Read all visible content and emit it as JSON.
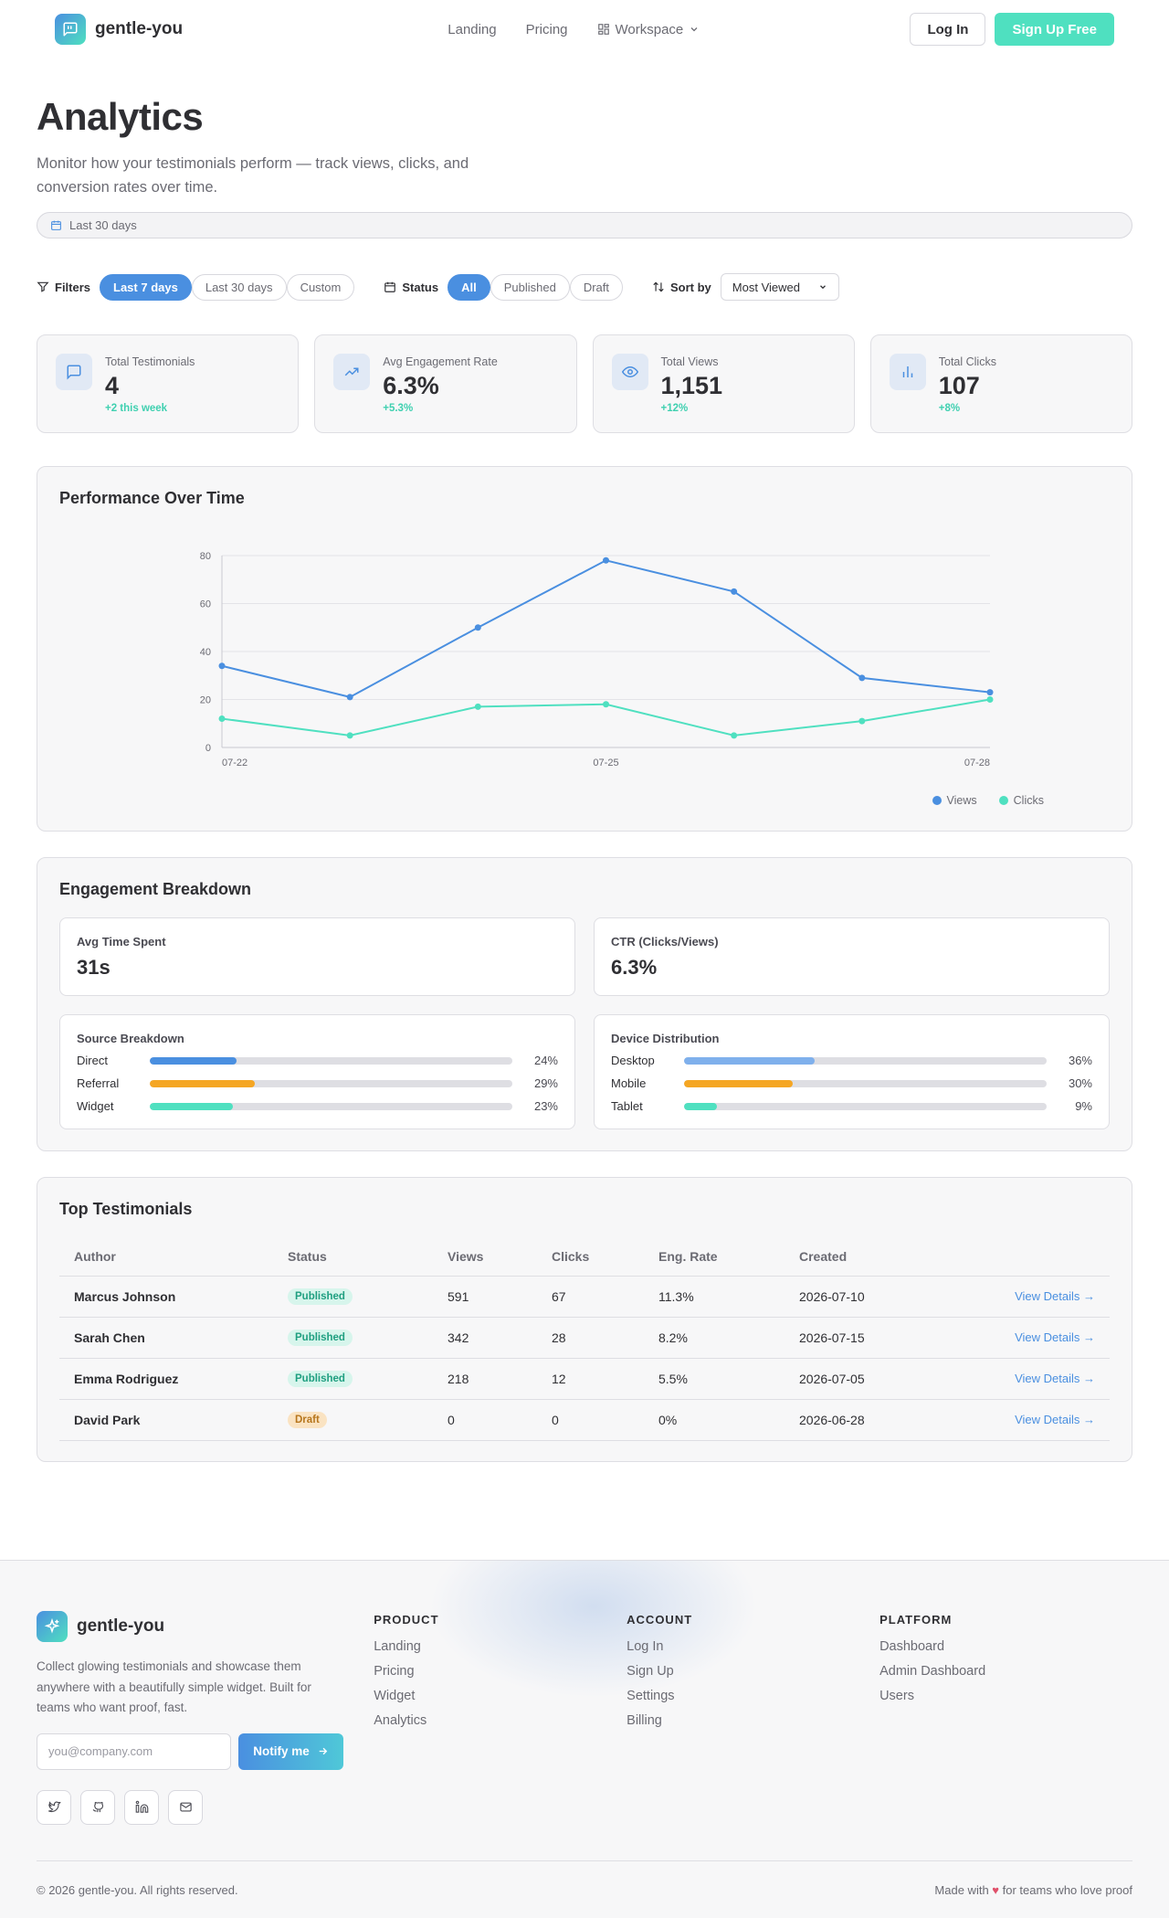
{
  "nav": {
    "brand": "gentle-you",
    "links": [
      "Landing",
      "Pricing",
      "Workspace"
    ],
    "login": "Log In",
    "signup": "Sign Up Free"
  },
  "hero": {
    "title": "Analytics",
    "subtitle": "Monitor how your testimonials perform — track views, clicks, and conversion rates over time.",
    "range": "Last 30 days"
  },
  "filters": {
    "filters_label": "Filters",
    "time_options": [
      "Last 7 days",
      "Last 30 days",
      "Custom"
    ],
    "time_selected": "Last 7 days",
    "status_label": "Status",
    "status_options": [
      "All",
      "Published",
      "Draft"
    ],
    "status_selected": "All",
    "sort_label": "Sort by",
    "sort_value": "Most Viewed"
  },
  "stats": [
    {
      "label": "Total Testimonials",
      "value": "4",
      "delta": "+2 this week",
      "icon": "message-icon"
    },
    {
      "label": "Avg Engagement Rate",
      "value": "6.3%",
      "delta": "+5.3%",
      "icon": "trend-up-icon"
    },
    {
      "label": "Total Views",
      "value": "1,151",
      "delta": "+12%",
      "icon": "eye-icon"
    },
    {
      "label": "Total Clicks",
      "value": "107",
      "delta": "+8%",
      "icon": "bar-chart-icon"
    }
  ],
  "performance": {
    "title": "Performance Over Time"
  },
  "chart_data": {
    "type": "line",
    "title": "Performance Over Time",
    "x": [
      "07-22",
      "07-23",
      "07-24",
      "07-25",
      "07-26",
      "07-27",
      "07-28"
    ],
    "x_tick_labels": [
      "07-22",
      "07-25",
      "07-28"
    ],
    "y_ticks": [
      0,
      20,
      40,
      60,
      80
    ],
    "ylim": [
      0,
      80
    ],
    "grid": true,
    "legend": "bottom-right",
    "series": [
      {
        "name": "Views",
        "color": "#4a8fe0",
        "values": [
          34,
          21,
          50,
          78,
          65,
          29,
          23
        ]
      },
      {
        "name": "Clicks",
        "color": "#4fe0c0",
        "values": [
          12,
          5,
          17,
          18,
          5,
          11,
          20
        ]
      }
    ]
  },
  "engagement": {
    "title": "Engagement Breakdown",
    "avg_time_label": "Avg Time Spent",
    "avg_time_value": "31s",
    "ctr_label": "CTR (Clicks/Views)",
    "ctr_value": "6.3%",
    "source_title": "Source Breakdown",
    "sources": [
      {
        "label": "Direct",
        "pct": "24%",
        "value": 24,
        "color": "#4a8fe0"
      },
      {
        "label": "Referral",
        "pct": "29%",
        "value": 29,
        "color": "#f5a623"
      },
      {
        "label": "Widget",
        "pct": "23%",
        "value": 23,
        "color": "#4fe0c0"
      }
    ],
    "device_title": "Device Distribution",
    "devices": [
      {
        "label": "Desktop",
        "pct": "36%",
        "value": 36,
        "color": "#7fb0ec"
      },
      {
        "label": "Mobile",
        "pct": "30%",
        "value": 30,
        "color": "#f5a623"
      },
      {
        "label": "Tablet",
        "pct": "9%",
        "value": 9,
        "color": "#4fe0c0"
      }
    ]
  },
  "top": {
    "title": "Top Testimonials",
    "headers": [
      "Author",
      "Status",
      "Views",
      "Clicks",
      "Eng. Rate",
      "Created",
      ""
    ],
    "rows": [
      {
        "author": "Marcus Johnson",
        "status": "Published",
        "views": "591",
        "clicks": "67",
        "rate": "11.3%",
        "created": "2026-07-10",
        "link": "View Details →"
      },
      {
        "author": "Sarah Chen",
        "status": "Published",
        "views": "342",
        "clicks": "28",
        "rate": "8.2%",
        "created": "2026-07-15",
        "link": "View Details →"
      },
      {
        "author": "Emma Rodriguez",
        "status": "Published",
        "views": "218",
        "clicks": "12",
        "rate": "5.5%",
        "created": "2026-07-05",
        "link": "View Details →"
      },
      {
        "author": "David Park",
        "status": "Draft",
        "views": "0",
        "clicks": "0",
        "rate": "0%",
        "created": "2026-06-28",
        "link": "View Details →"
      }
    ]
  },
  "footer": {
    "brand": "gentle-you",
    "tagline": "Collect glowing testimonials and showcase them anywhere with a beautifully simple widget. Built for teams who want proof, fast.",
    "email_placeholder": "you@company.com",
    "notify": "Notify me",
    "columns": [
      {
        "title": "PRODUCT",
        "links": [
          "Landing",
          "Pricing",
          "Widget",
          "Analytics"
        ]
      },
      {
        "title": "ACCOUNT",
        "links": [
          "Log In",
          "Sign Up",
          "Settings",
          "Billing"
        ]
      },
      {
        "title": "PLATFORM",
        "links": [
          "Dashboard",
          "Admin Dashboard",
          "Users"
        ]
      }
    ],
    "socials": [
      "twitter-icon",
      "github-icon",
      "linkedin-icon",
      "mail-icon"
    ],
    "copyright": "© 2026 gentle-you. All rights reserved.",
    "made_prefix": "Made with",
    "made_suffix": "for teams who love proof"
  }
}
